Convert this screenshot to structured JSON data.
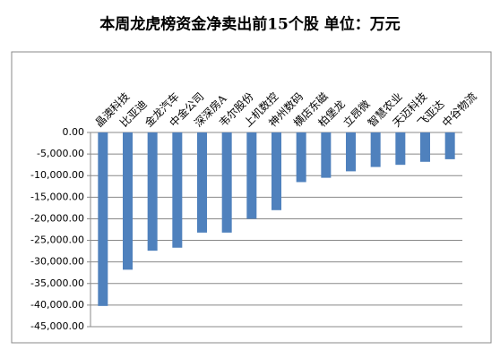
{
  "chart_data": {
    "type": "bar",
    "title": "本周龙虎榜资金净卖出前15个股 单位：万元",
    "categories": [
      "晶澳科技",
      "比亚迪",
      "金龙汽车",
      "中金公司",
      "深深房A",
      "韦尔股份",
      "上机数控",
      "神州数码",
      "横店东磁",
      "柏堡龙",
      "立昂微",
      "智慧农业",
      "天迈科技",
      "飞亚达",
      "中谷物流"
    ],
    "values": [
      -40200,
      -31800,
      -27400,
      -26700,
      -23200,
      -23200,
      -20000,
      -18000,
      -11500,
      -10500,
      -9000,
      -8000,
      -7500,
      -6800,
      -6200
    ],
    "color": "#4f81bd",
    "ylim": [
      -45000,
      0
    ],
    "yticks": [
      {
        "value": 0,
        "label": "0.00"
      },
      {
        "value": -5000,
        "label": "-5,000.00"
      },
      {
        "value": -10000,
        "label": "-10,000.00"
      },
      {
        "value": -15000,
        "label": "-15,000.00"
      },
      {
        "value": -20000,
        "label": "-20,000.00"
      },
      {
        "value": -25000,
        "label": "-25,000.00"
      },
      {
        "value": -30000,
        "label": "-30,000.00"
      },
      {
        "value": -35000,
        "label": "-35,000.00"
      },
      {
        "value": -40000,
        "label": "-40,000.00"
      },
      {
        "value": -45000,
        "label": "-45,000.00"
      }
    ],
    "grid": true
  }
}
